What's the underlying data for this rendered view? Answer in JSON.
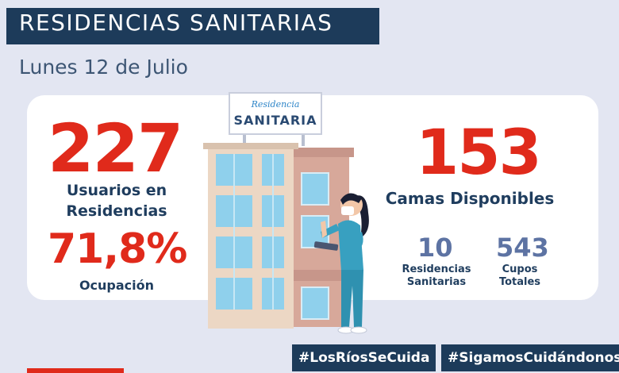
{
  "header": {
    "title": "RESIDENCIAS SANITARIAS",
    "date": "Lunes 12 de Julio"
  },
  "sign": {
    "script": "Residencia",
    "main": "SANITARIA"
  },
  "stats": {
    "usuarios_value": "227",
    "usuarios_label_1": "Usuarios en",
    "usuarios_label_2": "Residencias",
    "ocupacion_value": "71,8%",
    "ocupacion_label": "Ocupación",
    "camas_value": "153",
    "camas_label": "Camas Disponibles",
    "residencias_value": "10",
    "residencias_label_1": "Residencias",
    "residencias_label_2": "Sanitarias",
    "cupos_value": "543",
    "cupos_label_1": "Cupos",
    "cupos_label_2": "Totales"
  },
  "hashtags": {
    "first": "#LosRíosSeCuida",
    "second": "#SigamosCuidándonos"
  },
  "colors": {
    "navy": "#1d3b5a",
    "red": "#e02a1b",
    "slate": "#5d73a3",
    "background": "#e3e6f2"
  }
}
